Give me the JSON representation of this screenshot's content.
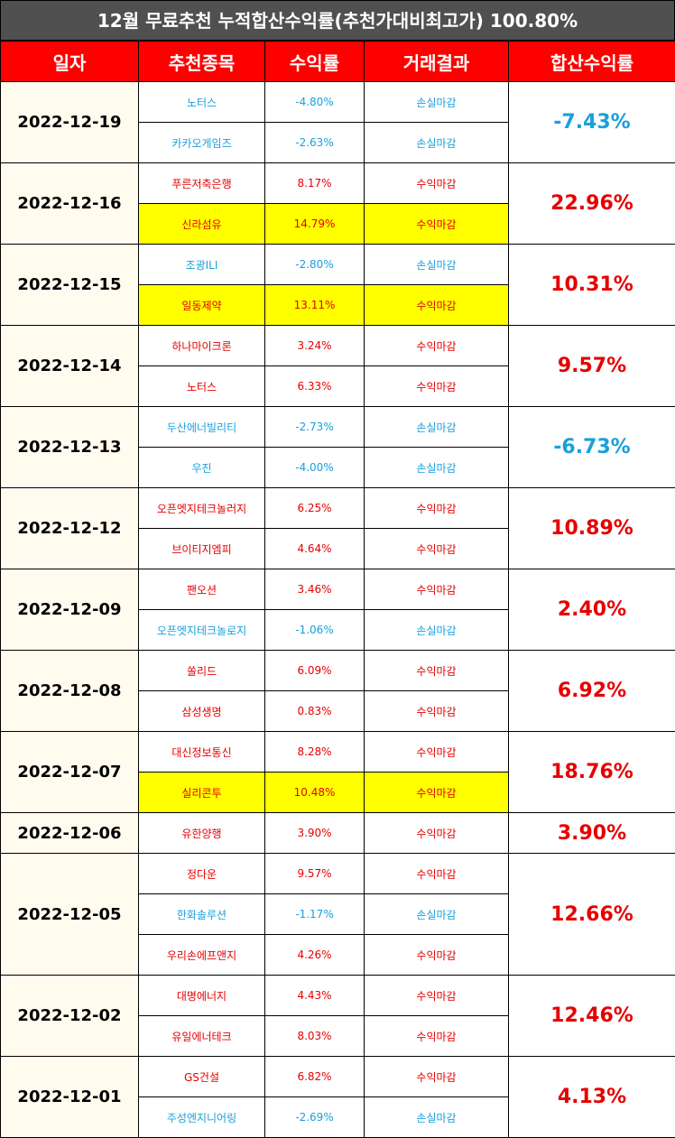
{
  "title": "12월 무료추천 누적합산수익률(추천가대비최고가) 100.80%",
  "header": [
    "일자",
    "추천종목",
    "수익률",
    "거래결과",
    "합산수익률"
  ],
  "groups": [
    {
      "date": "2022-12-19",
      "total": "-7.43%",
      "rows": [
        {
          "stock": "노터스",
          "return": "-4.80%",
          "result": "손실마감"
        },
        {
          "stock": "카카오게임즈",
          "return": "-2.63%",
          "result": "손실마감"
        }
      ]
    },
    {
      "date": "2022-12-16",
      "total": "22.96%",
      "rows": [
        {
          "stock": "푸른저축은행",
          "return": "8.17%",
          "result": "수익마감"
        },
        {
          "stock": "신라섬유",
          "return": "14.79%",
          "result": "수익마감",
          "highlight": true
        }
      ]
    },
    {
      "date": "2022-12-15",
      "total": "10.31%",
      "rows": [
        {
          "stock": "조광ILI",
          "return": "-2.80%",
          "result": "손실마감"
        },
        {
          "stock": "일동제약",
          "return": "13.11%",
          "result": "수익마감",
          "highlight": true
        }
      ]
    },
    {
      "date": "2022-12-14",
      "total": "9.57%",
      "rows": [
        {
          "stock": "하나마이크론",
          "return": "3.24%",
          "result": "수익마감"
        },
        {
          "stock": "노터스",
          "return": "6.33%",
          "result": "수익마감"
        }
      ]
    },
    {
      "date": "2022-12-13",
      "total": "-6.73%",
      "rows": [
        {
          "stock": "두산에너빌리티",
          "return": "-2.73%",
          "result": "손실마감"
        },
        {
          "stock": "우진",
          "return": "-4.00%",
          "result": "손실마감"
        }
      ]
    },
    {
      "date": "2022-12-12",
      "total": "10.89%",
      "rows": [
        {
          "stock": "오픈엣지테크놀러지",
          "return": "6.25%",
          "result": "수익마감"
        },
        {
          "stock": "브이티지엠피",
          "return": "4.64%",
          "result": "수익마감"
        }
      ]
    },
    {
      "date": "2022-12-09",
      "total": "2.40%",
      "rows": [
        {
          "stock": "팬오션",
          "return": "3.46%",
          "result": "수익마감"
        },
        {
          "stock": "오픈엣지테크놀로지",
          "return": "-1.06%",
          "result": "손실마감"
        }
      ]
    },
    {
      "date": "2022-12-08",
      "total": "6.92%",
      "rows": [
        {
          "stock": "쏠리드",
          "return": "6.09%",
          "result": "수익마감"
        },
        {
          "stock": "삼성생명",
          "return": "0.83%",
          "result": "수익마감"
        }
      ]
    },
    {
      "date": "2022-12-07",
      "total": "18.76%",
      "rows": [
        {
          "stock": "대신정보통신",
          "return": "8.28%",
          "result": "수익마감"
        },
        {
          "stock": "실리콘투",
          "return": "10.48%",
          "result": "수익마감",
          "highlight": true
        }
      ]
    },
    {
      "date": "2022-12-06",
      "total": "3.90%",
      "rows": [
        {
          "stock": "유한양행",
          "return": "3.90%",
          "result": "수익마감"
        }
      ]
    },
    {
      "date": "2022-12-05",
      "total": "12.66%",
      "rows": [
        {
          "stock": "정다운",
          "return": "9.57%",
          "result": "수익마감"
        },
        {
          "stock": "한화솔루션",
          "return": "-1.17%",
          "result": "손실마감"
        },
        {
          "stock": "우리손에프앤지",
          "return": "4.26%",
          "result": "수익마감"
        }
      ]
    },
    {
      "date": "2022-12-02",
      "total": "12.46%",
      "rows": [
        {
          "stock": "대명에너지",
          "return": "4.43%",
          "result": "수익마감"
        },
        {
          "stock": "유일에너테크",
          "return": "8.03%",
          "result": "수익마감"
        }
      ]
    },
    {
      "date": "2022-12-01",
      "total": "4.13%",
      "rows": [
        {
          "stock": "GS건설",
          "return": "6.82%",
          "result": "수익마감"
        },
        {
          "stock": "주성엔지니어링",
          "return": "-2.69%",
          "result": "손실마감"
        }
      ]
    }
  ]
}
